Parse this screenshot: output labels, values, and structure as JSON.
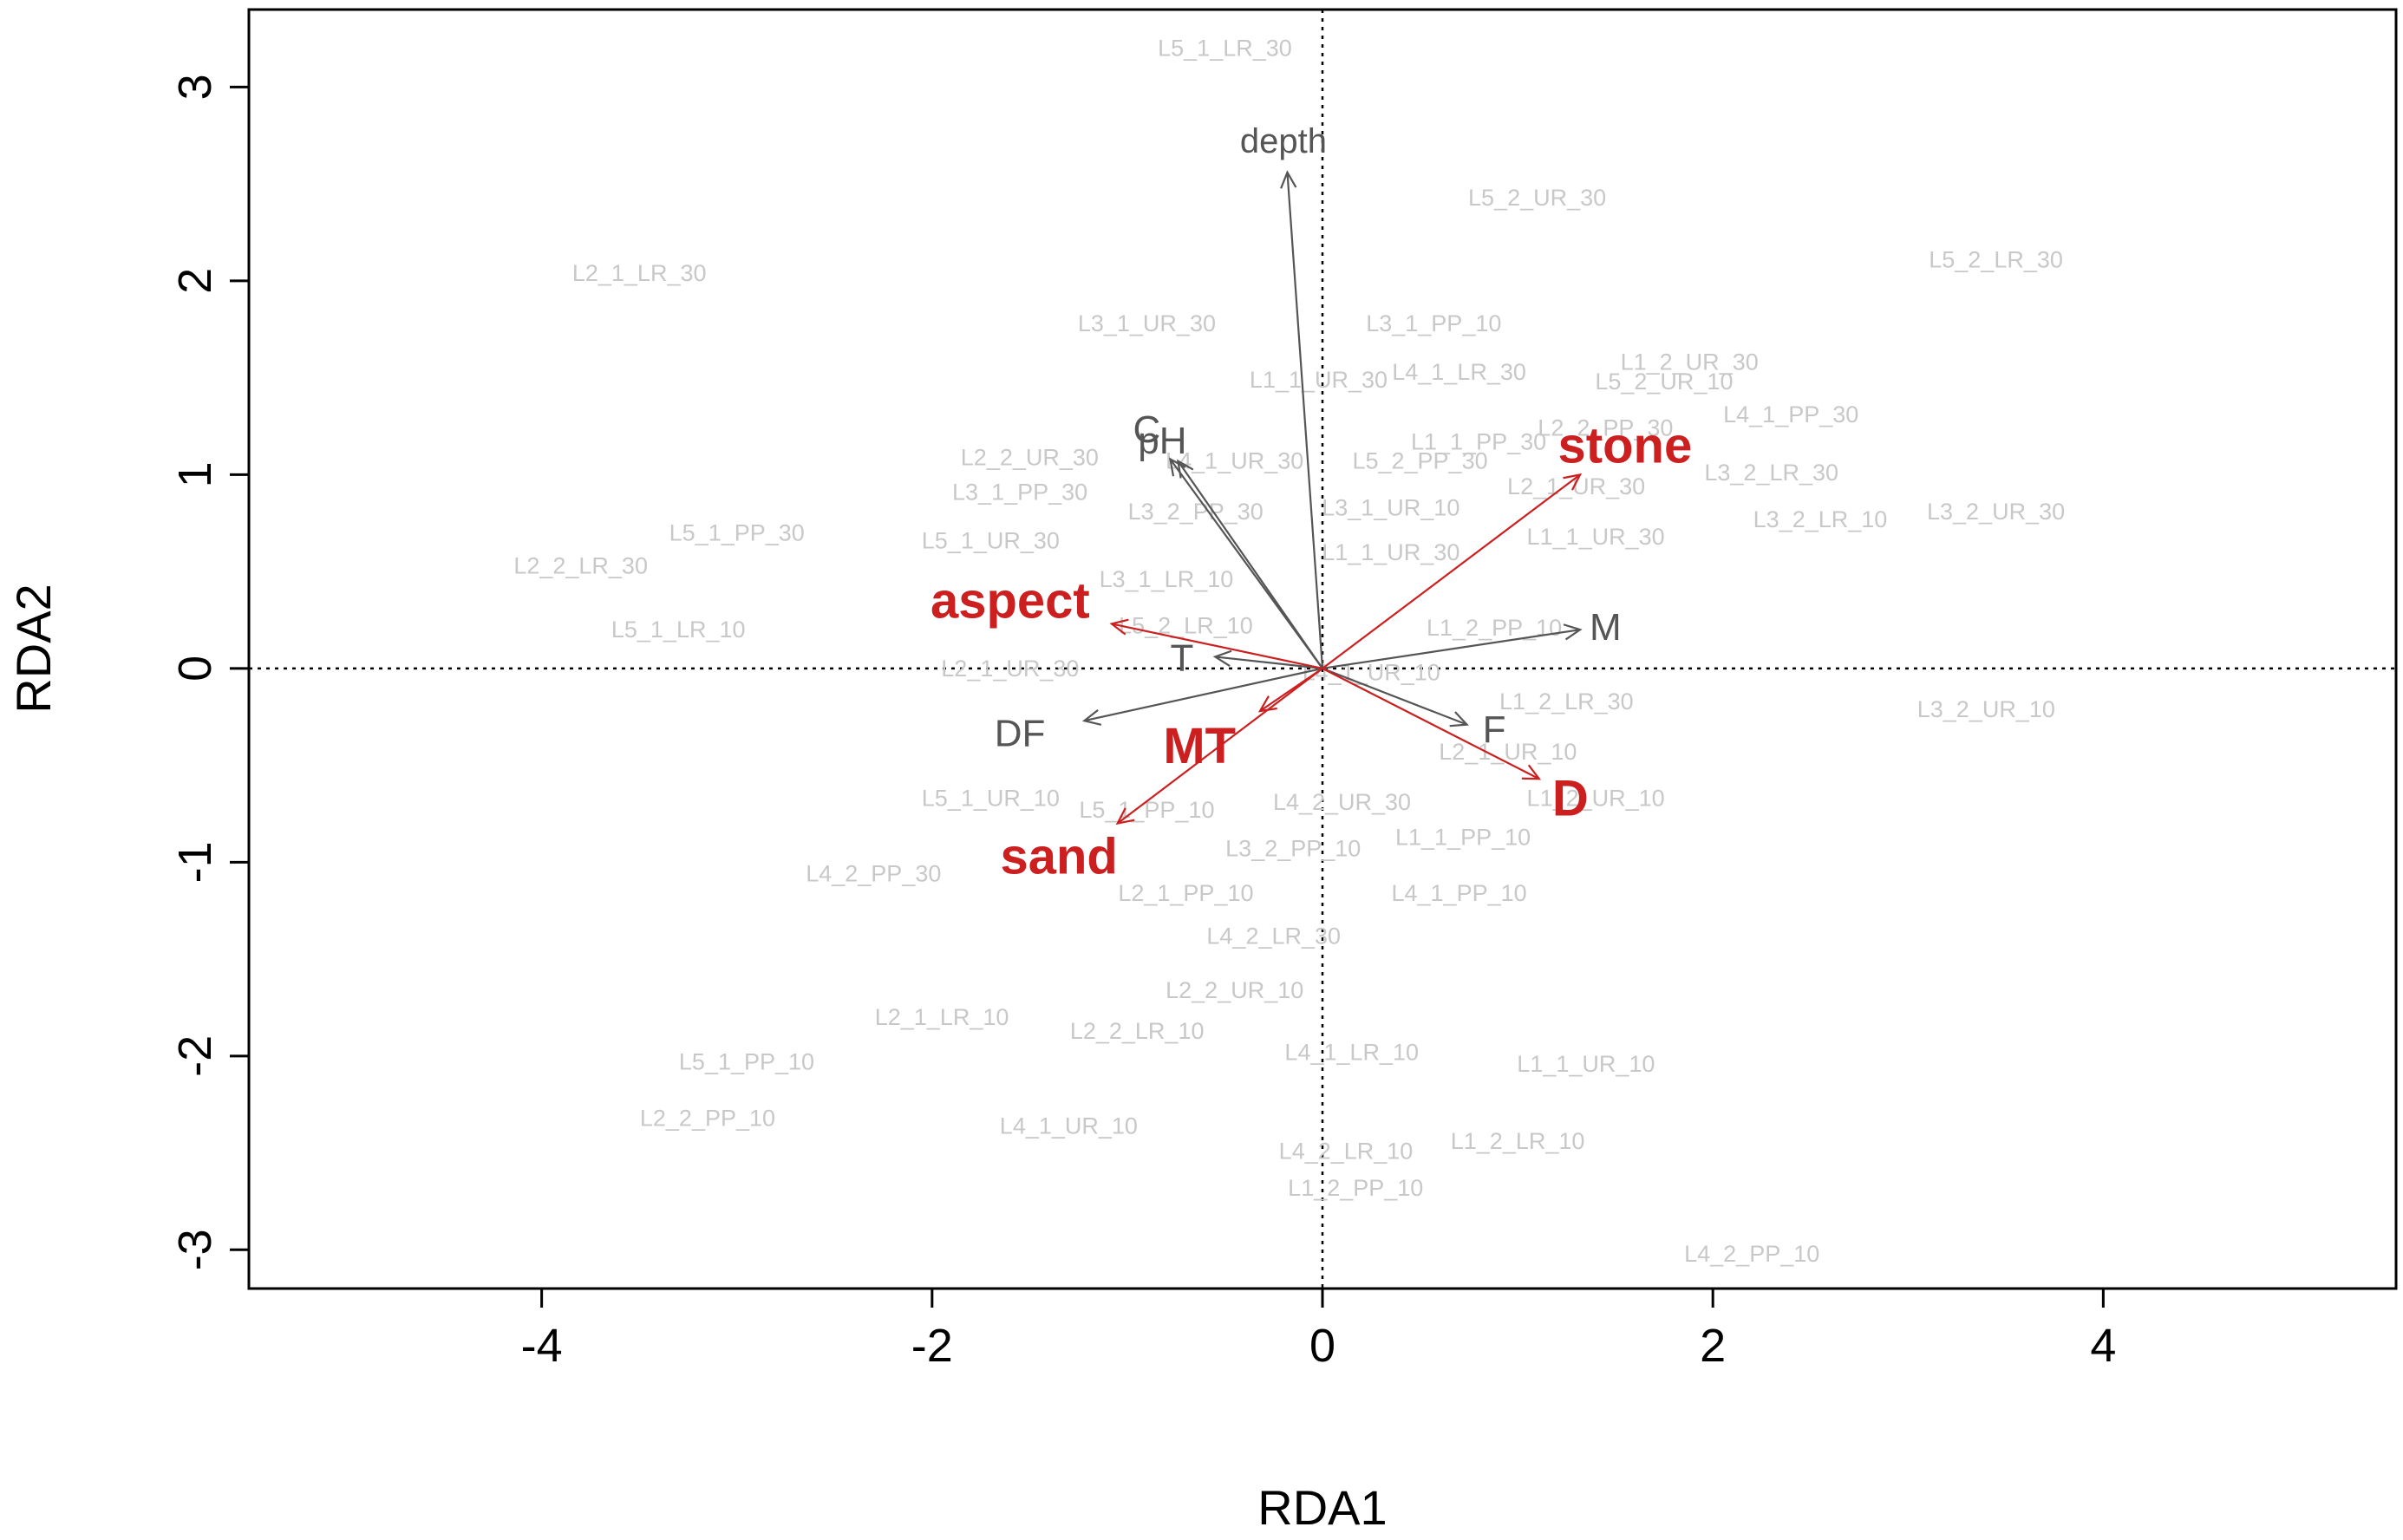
{
  "chart_data": {
    "type": "scatter",
    "subtype": "rda-biplot",
    "xlabel": "RDA1",
    "ylabel": "RDA2",
    "xlim": [
      -5.5,
      5.5
    ],
    "ylim": [
      -3.2,
      3.4
    ],
    "xticks": [
      -4,
      -2,
      0,
      2,
      4
    ],
    "yticks": [
      -3,
      -2,
      -1,
      0,
      1,
      2,
      3
    ],
    "grid": false,
    "reference_lines": {
      "x": 0,
      "y": 0,
      "style": "dotted"
    },
    "colors": {
      "site_text": "#c8c8c8",
      "variable_gray": "#555555",
      "variable_red": "#cc1f1f"
    },
    "sites": [
      {
        "label": "L5_1_LR_30",
        "x": -0.5,
        "y": 3.2
      },
      {
        "label": "L5_2_UR_30",
        "x": 1.1,
        "y": 2.43
      },
      {
        "label": "L5_2_LR_30",
        "x": 3.45,
        "y": 2.11
      },
      {
        "label": "L2_1_LR_30",
        "x": -3.5,
        "y": 2.04
      },
      {
        "label": "L3_1_UR_30",
        "x": -0.9,
        "y": 1.78
      },
      {
        "label": "L3_1_PP_10",
        "x": 0.57,
        "y": 1.78
      },
      {
        "label": "L1_1_UR_30",
        "x": -0.02,
        "y": 1.49
      },
      {
        "label": "L4_1_LR_30",
        "x": 0.7,
        "y": 1.53
      },
      {
        "label": "L1_2_UR_30",
        "x": 1.88,
        "y": 1.58
      },
      {
        "label": "L5_2_UR_10",
        "x": 1.75,
        "y": 1.48
      },
      {
        "label": "L4_1_PP_30",
        "x": 2.4,
        "y": 1.31
      },
      {
        "label": "L2_2_PP_30",
        "x": 1.45,
        "y": 1.24
      },
      {
        "label": "L1_1_PP_30",
        "x": 0.8,
        "y": 1.17
      },
      {
        "label": "L2_2_UR_30",
        "x": -1.5,
        "y": 1.09
      },
      {
        "label": "L5_2_PP_30",
        "x": 0.5,
        "y": 1.07
      },
      {
        "label": "L3_1_PP_30",
        "x": -1.55,
        "y": 0.91
      },
      {
        "label": "L4_1_UR_30",
        "x": -0.45,
        "y": 1.07
      },
      {
        "label": "L3_2_LR_30",
        "x": 2.3,
        "y": 1.01
      },
      {
        "label": "L2_1_UR_30",
        "x": 1.3,
        "y": 0.94
      },
      {
        "label": "L3_2_UR_30",
        "x": 3.45,
        "y": 0.81
      },
      {
        "label": "L3_2_LR_10",
        "x": 2.55,
        "y": 0.77
      },
      {
        "label": "L3_2_PP_30",
        "x": -0.65,
        "y": 0.81
      },
      {
        "label": "L3_1_UR_10",
        "x": 0.35,
        "y": 0.83
      },
      {
        "label": "L1_1_UR_30",
        "x": 1.4,
        "y": 0.68
      },
      {
        "label": "L5_1_PP_30",
        "x": -3.0,
        "y": 0.7
      },
      {
        "label": "L5_1_UR_30",
        "x": -1.7,
        "y": 0.66
      },
      {
        "label": "L1_1_UR_30",
        "x": 0.35,
        "y": 0.6
      },
      {
        "label": "L2_2_LR_30",
        "x": -3.8,
        "y": 0.53
      },
      {
        "label": "L3_1_LR_10",
        "x": -0.8,
        "y": 0.46
      },
      {
        "label": "L5_1_LR_10",
        "x": -3.3,
        "y": 0.2
      },
      {
        "label": "L5_2_LR_10",
        "x": -0.7,
        "y": 0.22
      },
      {
        "label": "L1_2_PP_10",
        "x": 0.88,
        "y": 0.21
      },
      {
        "label": "L2_1_UR_30",
        "x": -1.6,
        "y": 0.0
      },
      {
        "label": "L4_1_UR_10",
        "x": 0.25,
        "y": -0.02
      },
      {
        "label": "L3_2_UR_10",
        "x": 3.4,
        "y": -0.21
      },
      {
        "label": "L1_2_LR_30",
        "x": 1.25,
        "y": -0.17
      },
      {
        "label": "L2_1_UR_10",
        "x": 0.95,
        "y": -0.43
      },
      {
        "label": "L1_2_UR_10",
        "x": 1.4,
        "y": -0.67
      },
      {
        "label": "L5_1_UR_10",
        "x": -1.7,
        "y": -0.67
      },
      {
        "label": "L5_1_PP_10",
        "x": -0.9,
        "y": -0.73
      },
      {
        "label": "L4_2_UR_30",
        "x": 0.1,
        "y": -0.69
      },
      {
        "label": "L1_1_PP_10",
        "x": 0.72,
        "y": -0.87
      },
      {
        "label": "L3_2_PP_10",
        "x": -0.15,
        "y": -0.93
      },
      {
        "label": "L4_2_PP_30",
        "x": -2.3,
        "y": -1.06
      },
      {
        "label": "L2_1_PP_10",
        "x": -0.7,
        "y": -1.16
      },
      {
        "label": "L4_1_PP_10",
        "x": 0.7,
        "y": -1.16
      },
      {
        "label": "L4_2_LR_30",
        "x": -0.25,
        "y": -1.38
      },
      {
        "label": "L2_2_UR_10",
        "x": -0.45,
        "y": -1.66
      },
      {
        "label": "L2_1_LR_10",
        "x": -1.95,
        "y": -1.8
      },
      {
        "label": "L2_2_LR_10",
        "x": -0.95,
        "y": -1.87
      },
      {
        "label": "L4_1_LR_10",
        "x": 0.15,
        "y": -1.98
      },
      {
        "label": "L5_1_PP_10",
        "x": -2.95,
        "y": -2.03
      },
      {
        "label": "L1_1_UR_10",
        "x": 1.35,
        "y": -2.04
      },
      {
        "label": "L2_2_PP_10",
        "x": -3.15,
        "y": -2.32
      },
      {
        "label": "L4_1_UR_10",
        "x": -1.3,
        "y": -2.36
      },
      {
        "label": "L4_2_LR_10",
        "x": 0.12,
        "y": -2.49
      },
      {
        "label": "L1_2_LR_10",
        "x": 1.0,
        "y": -2.44
      },
      {
        "label": "L1_2_PP_10",
        "x": 0.17,
        "y": -2.68
      },
      {
        "label": "L4_2_PP_10",
        "x": 2.2,
        "y": -3.02
      }
    ],
    "variables": [
      {
        "name": "depth",
        "x": -0.18,
        "y": 2.56,
        "label_x": -0.2,
        "label_y": 2.71,
        "color": "gray",
        "emphasis": false
      },
      {
        "name": "C",
        "x": -0.74,
        "y": 1.07,
        "label_x": -0.9,
        "label_y": 1.22,
        "color": "gray",
        "emphasis": false
      },
      {
        "name": "pH",
        "x": -0.78,
        "y": 1.08,
        "label_x": -0.82,
        "label_y": 1.16,
        "color": "gray",
        "emphasis": false
      },
      {
        "name": "M",
        "x": 1.32,
        "y": 0.2,
        "label_x": 1.45,
        "label_y": 0.2,
        "color": "gray",
        "emphasis": false
      },
      {
        "name": "T",
        "x": -0.55,
        "y": 0.06,
        "label_x": -0.72,
        "label_y": 0.04,
        "color": "gray",
        "emphasis": false
      },
      {
        "name": "DF",
        "x": -1.22,
        "y": -0.27,
        "label_x": -1.55,
        "label_y": -0.35,
        "color": "gray",
        "emphasis": false
      },
      {
        "name": "F",
        "x": 0.74,
        "y": -0.29,
        "label_x": 0.88,
        "label_y": -0.33,
        "color": "gray",
        "emphasis": false
      },
      {
        "name": "stone",
        "x": 1.32,
        "y": 1.0,
        "label_x": 1.55,
        "label_y": 1.13,
        "color": "red",
        "emphasis": true
      },
      {
        "name": "aspect",
        "x": -1.08,
        "y": 0.23,
        "label_x": -1.6,
        "label_y": 0.33,
        "color": "red",
        "emphasis": true
      },
      {
        "name": "MT",
        "x": -0.32,
        "y": -0.22,
        "label_x": -0.63,
        "label_y": -0.42,
        "color": "red",
        "emphasis": true
      },
      {
        "name": "D",
        "x": 1.11,
        "y": -0.57,
        "label_x": 1.27,
        "label_y": -0.69,
        "color": "red",
        "emphasis": true
      },
      {
        "name": "sand",
        "x": -1.05,
        "y": -0.8,
        "label_x": -1.35,
        "label_y": -0.99,
        "color": "red",
        "emphasis": true
      }
    ]
  }
}
